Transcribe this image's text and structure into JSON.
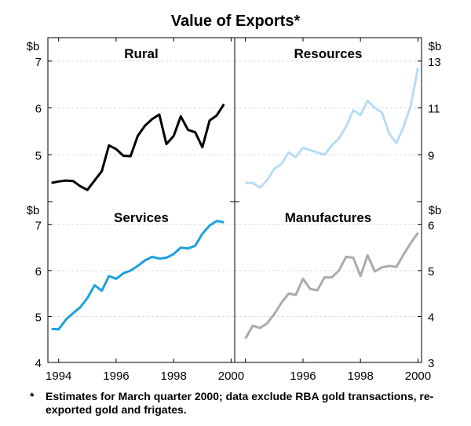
{
  "chart_data": {
    "type": "line",
    "title": "Value of Exports*",
    "unit_label": "$b",
    "x_range": [
      1993.625,
      2000.125
    ],
    "x_ticks": [
      1994,
      1996,
      1998,
      2000
    ],
    "x_tick_labels": [
      "1994",
      "1996",
      "1998",
      "2000"
    ],
    "panels": [
      {
        "name": "Rural",
        "side": "left",
        "row": "top",
        "ylim": [
          4,
          7.5
        ],
        "y_ticks": [
          5,
          6,
          7
        ],
        "y_tick_labels": [
          "5",
          "6",
          "7"
        ],
        "color": "#000000",
        "x": [
          1993.75,
          1994.0,
          1994.25,
          1994.5,
          1994.75,
          1995.0,
          1995.25,
          1995.5,
          1995.75,
          1996.0,
          1996.25,
          1996.5,
          1996.75,
          1997.0,
          1997.25,
          1997.5,
          1997.75,
          1998.0,
          1998.25,
          1998.5,
          1998.75,
          1999.0,
          1999.25,
          1999.5,
          1999.75,
          2000.0
        ],
        "values": [
          4.4,
          4.43,
          4.45,
          4.44,
          4.33,
          4.25,
          4.45,
          4.65,
          5.2,
          5.12,
          4.98,
          4.97,
          5.4,
          5.62,
          5.76,
          5.86,
          5.23,
          5.4,
          5.82,
          5.53,
          5.48,
          5.16,
          5.73,
          5.84,
          6.08,
          null
        ]
      },
      {
        "name": "Resources",
        "side": "right",
        "row": "top",
        "ylim": [
          7,
          14
        ],
        "y_ticks": [
          9,
          11,
          13
        ],
        "y_tick_labels": [
          "9",
          "11",
          "13"
        ],
        "color": "#b7dcf3",
        "x": [
          1993.75,
          1994.0,
          1994.25,
          1994.5,
          1994.75,
          1995.0,
          1995.25,
          1995.5,
          1995.75,
          1996.0,
          1996.25,
          1996.5,
          1996.75,
          1997.0,
          1997.25,
          1997.5,
          1997.75,
          1998.0,
          1998.25,
          1998.5,
          1998.75,
          1999.0,
          1999.25,
          1999.5,
          1999.75,
          2000.0
        ],
        "values": [
          null,
          7.8,
          7.8,
          7.6,
          7.9,
          8.4,
          8.6,
          9.1,
          8.9,
          9.3,
          9.2,
          9.1,
          9.0,
          9.4,
          9.7,
          10.2,
          10.9,
          10.7,
          11.3,
          11.0,
          10.8,
          9.9,
          9.5,
          10.2,
          11.1,
          12.7
        ]
      },
      {
        "name": "Services",
        "side": "left",
        "row": "bottom",
        "ylim": [
          4,
          7.5
        ],
        "y_ticks": [
          4,
          5,
          6,
          7
        ],
        "y_tick_labels": [
          "4",
          "5",
          "6",
          "7"
        ],
        "color": "#1ea0e0",
        "x": [
          1993.75,
          1994.0,
          1994.25,
          1994.5,
          1994.75,
          1995.0,
          1995.25,
          1995.5,
          1995.75,
          1996.0,
          1996.25,
          1996.5,
          1996.75,
          1997.0,
          1997.25,
          1997.5,
          1997.75,
          1998.0,
          1998.25,
          1998.5,
          1998.75,
          1999.0,
          1999.25,
          1999.5,
          1999.75,
          2000.0
        ],
        "values": [
          4.73,
          4.72,
          4.93,
          5.07,
          5.2,
          5.4,
          5.68,
          5.56,
          5.88,
          5.82,
          5.94,
          6.0,
          6.1,
          6.22,
          6.3,
          6.26,
          6.28,
          6.36,
          6.5,
          6.48,
          6.54,
          6.8,
          6.98,
          7.08,
          7.05,
          null
        ]
      },
      {
        "name": "Manufactures",
        "side": "right",
        "row": "bottom",
        "ylim": [
          3,
          6.5
        ],
        "y_ticks": [
          3,
          4,
          5,
          6
        ],
        "y_tick_labels": [
          "3",
          "4",
          "5",
          "6"
        ],
        "color": "#ababab",
        "x": [
          1993.75,
          1994.0,
          1994.25,
          1994.5,
          1994.75,
          1995.0,
          1995.25,
          1995.5,
          1995.75,
          1996.0,
          1996.25,
          1996.5,
          1996.75,
          1997.0,
          1997.25,
          1997.5,
          1997.75,
          1998.0,
          1998.25,
          1998.5,
          1998.75,
          1999.0,
          1999.25,
          1999.5,
          1999.75,
          2000.0
        ],
        "values": [
          null,
          3.52,
          3.8,
          3.75,
          3.85,
          4.05,
          4.3,
          4.5,
          4.47,
          4.82,
          4.6,
          4.57,
          4.85,
          4.85,
          5.0,
          5.3,
          5.28,
          4.88,
          5.33,
          4.98,
          5.07,
          5.1,
          5.08,
          5.35,
          5.6,
          5.82
        ]
      }
    ]
  },
  "footnote": {
    "mark": "*",
    "text": "Estimates for March quarter 2000; data exclude RBA gold transactions, re-exported gold and frigates."
  }
}
